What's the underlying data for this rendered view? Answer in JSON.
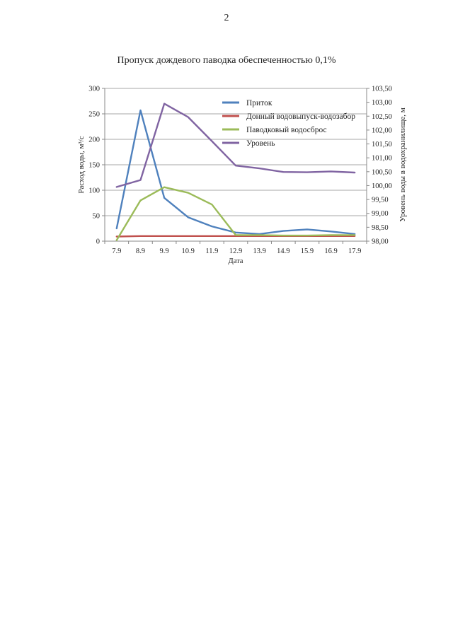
{
  "page": {
    "number": "2"
  },
  "chart_data": {
    "type": "line",
    "title": "Пропуск дождевого паводка обеспеченностью 0,1%",
    "xlabel": "Дата",
    "ylabel": "Расход воды, м³/с",
    "y2label": "Уровень воды в водохранилище, м",
    "categories": [
      "7.9",
      "8.9",
      "9.9",
      "10.9",
      "11.9",
      "12.9",
      "13.9",
      "14.9",
      "15.9",
      "16.9",
      "17.9"
    ],
    "ylim": [
      0,
      300
    ],
    "yticks": [
      "0",
      "50",
      "100",
      "150",
      "200",
      "250",
      "300"
    ],
    "y2lim": [
      98.0,
      103.5
    ],
    "y2ticks": [
      "98,00",
      "98,50",
      "99,00",
      "99,50",
      "100,00",
      "100,50",
      "101,00",
      "101,50",
      "102,00",
      "102,50",
      "103,00",
      "103,50"
    ],
    "grid": true,
    "legend_position": "top-right",
    "series": [
      {
        "name": "Приток",
        "axis": "left",
        "color": "#4f81bd",
        "values": [
          25,
          257,
          85,
          47,
          29,
          17,
          14,
          20,
          23,
          19,
          14
        ]
      },
      {
        "name": "Донный водовыпуск-водозабор",
        "axis": "left",
        "color": "#c0504d",
        "values": [
          9,
          10,
          10,
          10,
          10,
          10,
          10,
          10,
          10,
          10,
          10
        ]
      },
      {
        "name": "Паводковый водосброс",
        "axis": "left",
        "color": "#9bbb59",
        "values": [
          2,
          80,
          106,
          95,
          72,
          12,
          12,
          11,
          11,
          12,
          12
        ]
      },
      {
        "name": "Уровень",
        "axis": "right",
        "color": "#8064a2",
        "values": [
          99.95,
          100.2,
          102.95,
          102.47,
          101.6,
          100.72,
          100.62,
          100.49,
          100.48,
          100.51,
          100.47
        ]
      }
    ]
  }
}
